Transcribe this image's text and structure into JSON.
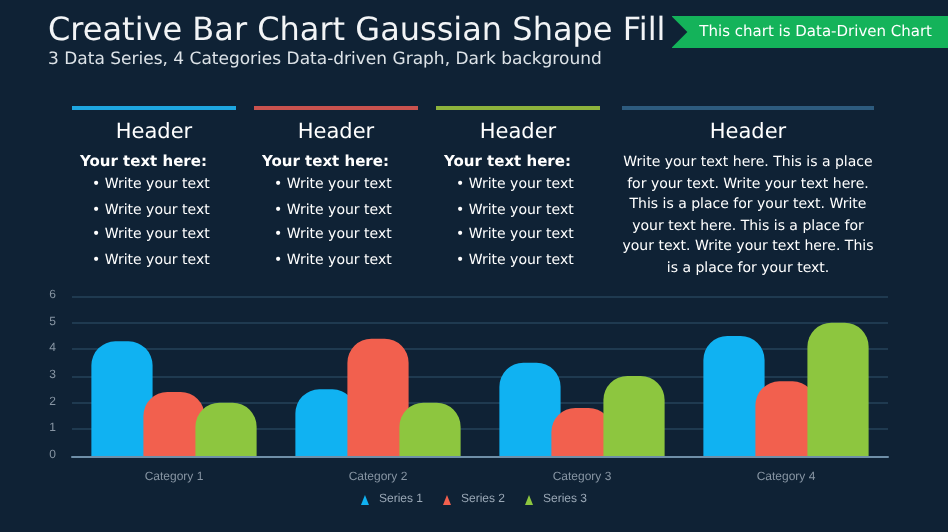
{
  "chart_data": [
    {
      "type": "other",
      "title": "Creative Bar Chart Gaussian Shape Fill",
      "subtitle": "3 Data Series, 4 Categories Data-driven Graph, Dark background",
      "annotations": [
        "This chart is Data-Driven Chart"
      ],
      "color": "#14b35a"
    },
    {
      "type": "other",
      "title": "Header",
      "subtitle": "Your text here:",
      "annotations": [
        "• Write your text",
        "• Write your text",
        "• Write your text",
        "• Write your text"
      ],
      "color": "#1ea6e0"
    },
    {
      "type": "other",
      "title": "Header",
      "subtitle": "Your text here:",
      "annotations": [
        "• Write your text",
        "• Write your text",
        "• Write your text",
        "• Write your text"
      ],
      "color": "#c9524e"
    },
    {
      "type": "other",
      "title": "Header",
      "subtitle": "Your text here:",
      "annotations": [
        "• Write your text",
        "• Write your text",
        "• Write your text",
        "• Write your text"
      ],
      "color": "#8db33c"
    },
    {
      "type": "other",
      "title": "Header",
      "annotations": [
        "Write your text here. This is a place for your text. Write your text here. This is a place for your text. Write your text here. This is a place for your text. Write your text here. This is a place for your text."
      ],
      "color": "#2d5b7e"
    },
    {
      "type": "bar",
      "categories": [
        "Category 1",
        "Category 2",
        "Category 3",
        "Category 4"
      ],
      "series": [
        {
          "name": "Series 1",
          "color": "#10b2f2",
          "values": [
            4.3,
            2.5,
            3.5,
            4.5
          ]
        },
        {
          "name": "Series 2",
          "color": "#f2604e",
          "values": [
            2.4,
            4.4,
            1.8,
            2.8
          ]
        },
        {
          "name": "Series 3",
          "color": "#8dc63f",
          "values": [
            2.0,
            2.0,
            3.0,
            5.0
          ]
        }
      ],
      "ylim": [
        0,
        6
      ],
      "yticks": [
        0,
        1,
        2,
        3,
        4,
        5,
        6
      ],
      "grid": "y",
      "legend": "bottom"
    }
  ]
}
